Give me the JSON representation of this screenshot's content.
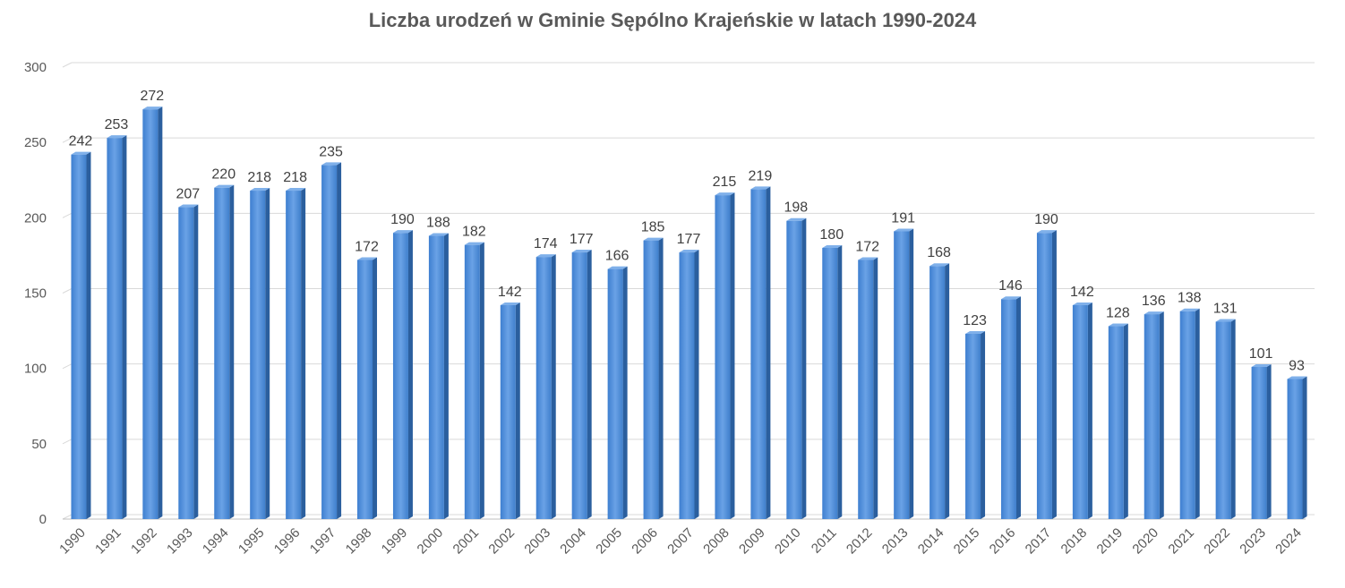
{
  "chart_data": {
    "type": "bar",
    "title": "Liczba urodzeń w Gminie Sępólno Krajeńskie w latach 1990-2024",
    "xlabel": "",
    "ylabel": "",
    "ylim": [
      0,
      300
    ],
    "yticks": [
      "0",
      "50",
      "100",
      "150",
      "200",
      "250",
      "300"
    ],
    "grid": true,
    "legend": "none",
    "bar_color": "#4F8FDB",
    "categories": [
      "1990",
      "1991",
      "1992",
      "1993",
      "1994",
      "1995",
      "1996",
      "1997",
      "1998",
      "1999",
      "2000",
      "2001",
      "2002",
      "2003",
      "2004",
      "2005",
      "2006",
      "2007",
      "2008",
      "2009",
      "2010",
      "2011",
      "2012",
      "2013",
      "2014",
      "2015",
      "2016",
      "2017",
      "2018",
      "2019",
      "2020",
      "2021",
      "2022",
      "2023",
      "2024"
    ],
    "values": [
      242,
      253,
      272,
      207,
      220,
      218,
      218,
      235,
      172,
      190,
      188,
      182,
      142,
      174,
      177,
      166,
      185,
      177,
      215,
      219,
      198,
      180,
      172,
      191,
      168,
      123,
      146,
      190,
      142,
      128,
      136,
      138,
      131,
      101,
      93
    ]
  }
}
